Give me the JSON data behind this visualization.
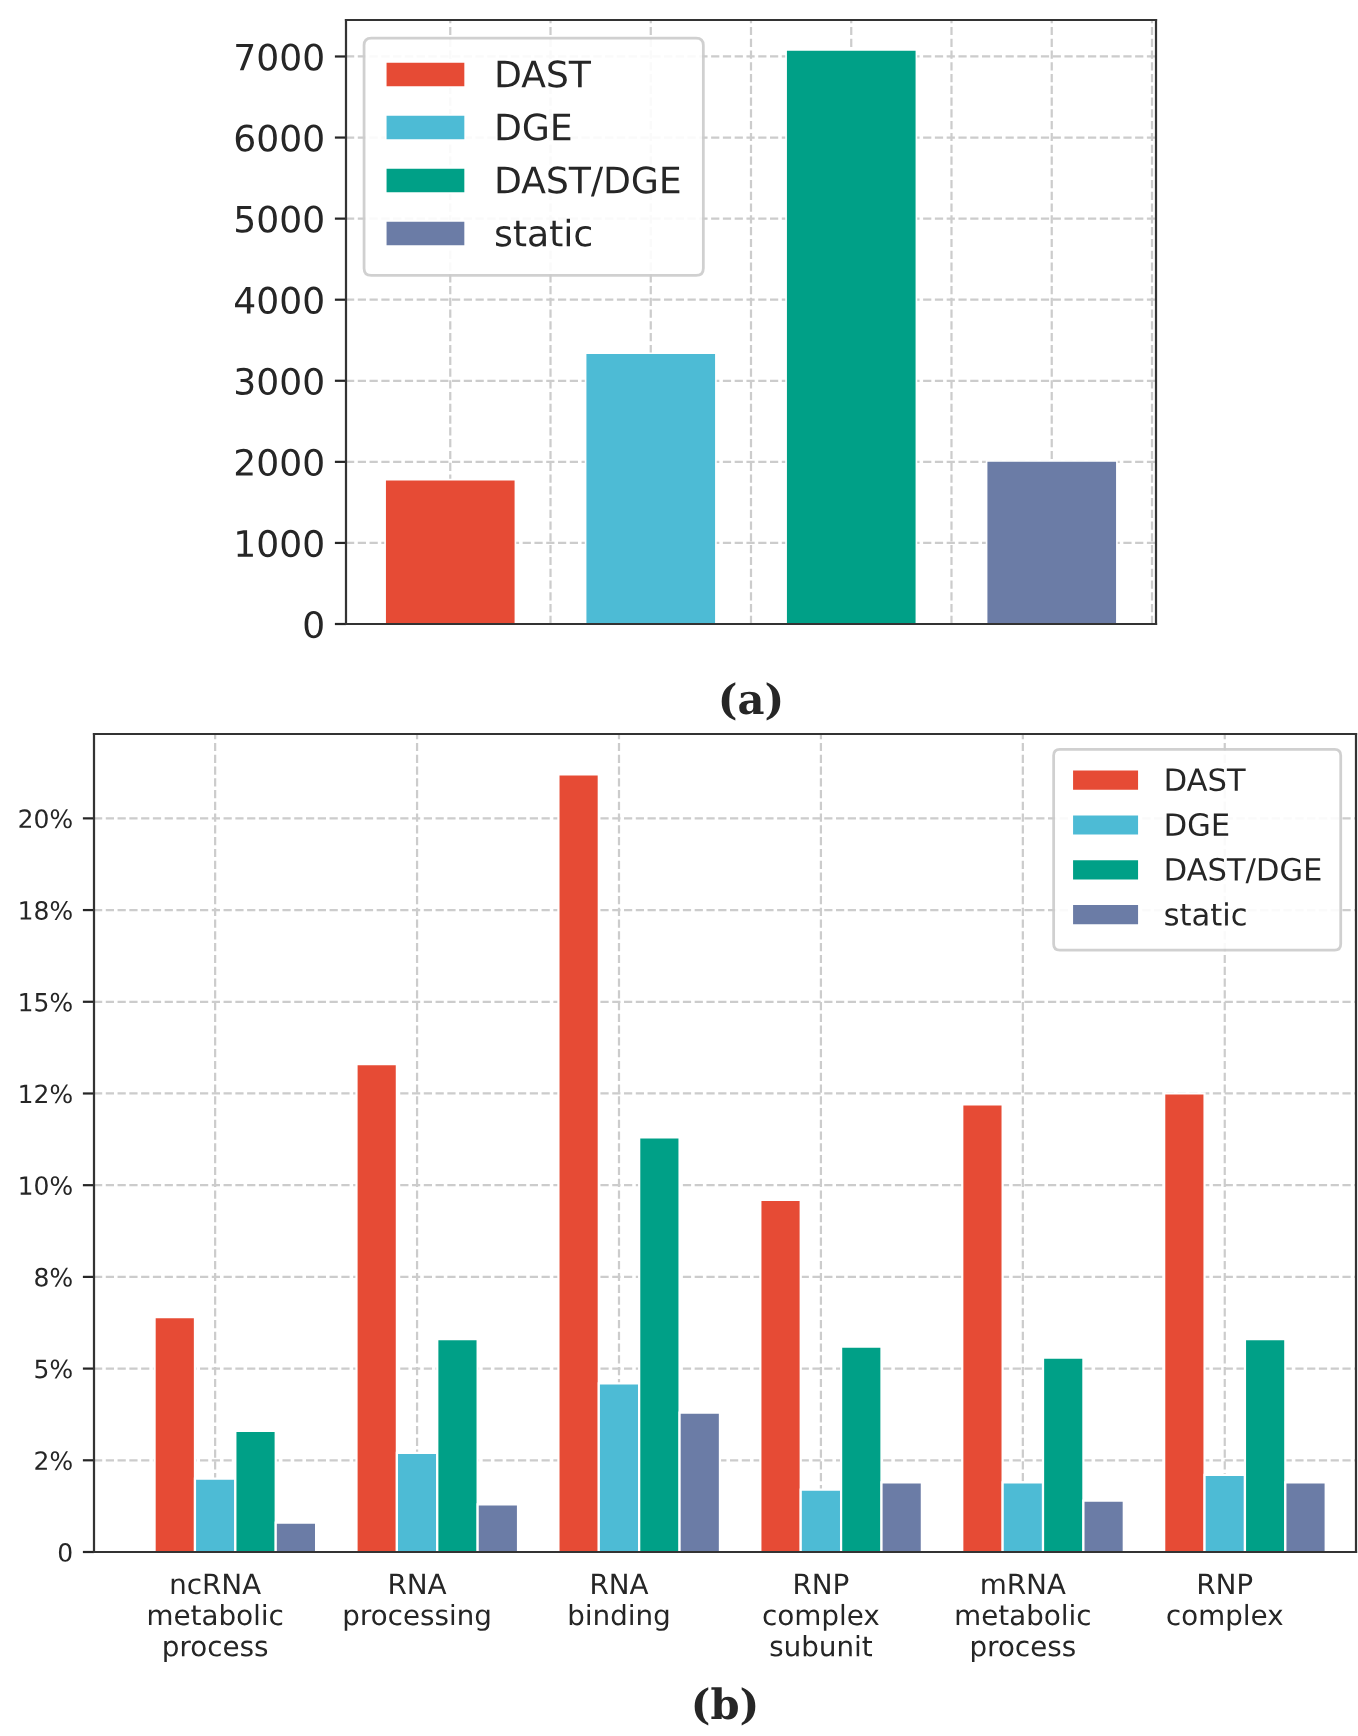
{
  "chart_data": [
    {
      "type": "bar",
      "categories": [
        null,
        null,
        null,
        null
      ],
      "ylim": [
        0,
        7450
      ],
      "yticks": [
        0,
        1000,
        2000,
        3000,
        4000,
        5000,
        6000,
        7000
      ],
      "grid": true,
      "legend": "top left",
      "annotations": [
        "(a)"
      ],
      "series": [
        {
          "name": "DAST",
          "color": "#e64b35",
          "values": [
            1780,
            null,
            null,
            null
          ]
        },
        {
          "name": "DGE",
          "color": "#4dbbd5",
          "values": [
            null,
            3340,
            null,
            null
          ]
        },
        {
          "name": "DAST/DGE",
          "color": "#00a087",
          "values": [
            null,
            null,
            7080,
            null
          ]
        },
        {
          "name": "static",
          "color": "#6b7ca6",
          "values": [
            null,
            null,
            null,
            2010
          ]
        }
      ]
    },
    {
      "type": "bar",
      "categories": [
        "ncRNA\nmetabolic\nprocess",
        "RNA\nprocessing",
        "RNA\nbinding",
        "RNP\ncomplex\nsubunit",
        "mRNA\nmetabolic\nprocess",
        "RNP\ncomplex"
      ],
      "ylim": [
        0,
        22.3
      ],
      "yticks": [
        0,
        {
          "value": 2.5,
          "label": "2%"
        },
        {
          "value": 5,
          "label": "5%"
        },
        {
          "value": 7.5,
          "label": "8%"
        },
        {
          "value": 10,
          "label": "10%"
        },
        {
          "value": 12.5,
          "label": "12%"
        },
        {
          "value": 15,
          "label": "15%"
        },
        {
          "value": 17.5,
          "label": "18%"
        },
        {
          "value": 20,
          "label": "20%"
        }
      ],
      "grid": true,
      "legend": "top right",
      "annotations": [
        "(b)"
      ],
      "series": [
        {
          "name": "DAST",
          "color": "#e64b35",
          "values": [
            6.4,
            13.3,
            21.2,
            9.6,
            12.2,
            12.5
          ]
        },
        {
          "name": "DGE",
          "color": "#4dbbd5",
          "values": [
            2.0,
            2.7,
            4.6,
            1.7,
            1.9,
            2.1
          ]
        },
        {
          "name": "DAST/DGE",
          "color": "#00a087",
          "values": [
            3.3,
            5.8,
            11.3,
            5.6,
            5.3,
            5.8
          ]
        },
        {
          "name": "static",
          "color": "#6b7ca6",
          "values": [
            0.8,
            1.3,
            3.8,
            1.9,
            1.4,
            1.9
          ]
        }
      ]
    }
  ]
}
